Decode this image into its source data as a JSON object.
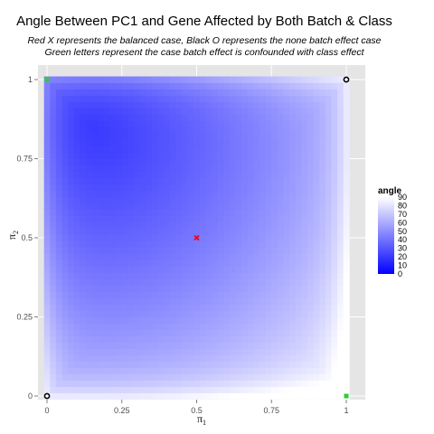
{
  "chart_data": {
    "type": "heatmap",
    "title": "Angle Between PC1 and Gene Affected by Both Batch & Class",
    "subtitle_lines": [
      "Red X represents the balanced case, Black O represents the none batch effect case",
      "Green letters represent the case batch effect is confounded with class effect"
    ],
    "xlabel": {
      "symbol": "π",
      "subscript": "1"
    },
    "ylabel": {
      "symbol": "π",
      "subscript": "2"
    },
    "xlim": [
      0,
      1
    ],
    "ylim": [
      0,
      1
    ],
    "x_ticks": [
      0,
      0.25,
      0.5,
      0.75,
      1
    ],
    "x_tick_labels": [
      "0",
      "0.25",
      "0.5",
      "0.75",
      "1"
    ],
    "y_ticks": [
      0,
      0.25,
      0.5,
      0.75,
      1
    ],
    "y_tick_labels": [
      "0",
      "0.25",
      "0.5",
      "0.75",
      "1"
    ],
    "grid": true,
    "grid_resolution": 0.02,
    "value_model": {
      "description_of_field": "angle varies with position; minimum near (0.15, 0.85), maximum near corners (1,0)",
      "min_angle_point": [
        0.15,
        0.85
      ],
      "min_angle": 20,
      "max_angle": 88
    },
    "legend": {
      "title": "angle",
      "position": "right",
      "range": [
        0,
        90
      ],
      "breaks": [
        90,
        80,
        70,
        60,
        50,
        40,
        30,
        20,
        10,
        0
      ],
      "colors": {
        "low": "#0000ff",
        "high": "#ffffff"
      }
    },
    "annotations": [
      {
        "type": "red-x",
        "label": "balanced case",
        "x": 0.5,
        "y": 0.5,
        "color": "#ff0000"
      },
      {
        "type": "black-o",
        "label": "none batch effect",
        "x": 0,
        "y": 0,
        "color": "#000000"
      },
      {
        "type": "black-o",
        "label": "none batch effect",
        "x": 1,
        "y": 1,
        "color": "#000000"
      },
      {
        "type": "green-mark",
        "label": "confounded",
        "x": 0,
        "y": 1,
        "color": "#33cc33"
      },
      {
        "type": "green-mark",
        "label": "confounded",
        "x": 1,
        "y": 0,
        "color": "#33cc33"
      }
    ],
    "panel_background": "#e5e5e5"
  }
}
